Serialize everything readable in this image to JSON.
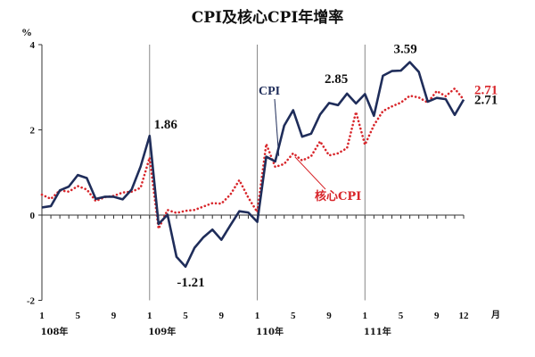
{
  "chart_data": {
    "type": "line",
    "title": "CPI及核心CPI年增率",
    "ylabel": "%",
    "xlabel_right": "月",
    "ylim": [
      -2,
      4
    ],
    "yticks": [
      "-2",
      "0",
      "2",
      "4"
    ],
    "month_ticks": [
      "1",
      "5",
      "9",
      "1",
      "5",
      "9",
      "1",
      "5",
      "9",
      "1",
      "5",
      "9",
      "12"
    ],
    "year_labels": [
      "108年",
      "109年",
      "110年",
      "111年"
    ],
    "x_months": 48,
    "series": [
      {
        "name": "CPI",
        "color": "#1f2d5a",
        "style": "solid",
        "values": [
          0.18,
          0.21,
          0.58,
          0.67,
          0.94,
          0.87,
          0.38,
          0.43,
          0.43,
          0.37,
          0.6,
          1.14,
          1.86,
          -0.21,
          0.01,
          -0.98,
          -1.21,
          -0.77,
          -0.52,
          -0.34,
          -0.58,
          -0.24,
          0.09,
          0.06,
          -0.16,
          1.37,
          1.26,
          2.1,
          2.46,
          1.84,
          1.91,
          2.36,
          2.63,
          2.58,
          2.85,
          2.62,
          2.84,
          2.33,
          3.27,
          3.38,
          3.39,
          3.59,
          3.36,
          2.66,
          2.75,
          2.72,
          2.35,
          2.71
        ]
      },
      {
        "name": "核心CPI",
        "color": "#d8262b",
        "style": "dotted",
        "values": [
          0.48,
          0.38,
          0.58,
          0.55,
          0.68,
          0.6,
          0.33,
          0.42,
          0.45,
          0.53,
          0.55,
          0.64,
          1.35,
          -0.32,
          0.12,
          0.05,
          0.1,
          0.12,
          0.2,
          0.28,
          0.27,
          0.48,
          0.82,
          0.41,
          0.07,
          1.67,
          1.13,
          1.2,
          1.45,
          1.28,
          1.38,
          1.73,
          1.4,
          1.45,
          1.57,
          2.42,
          1.65,
          2.11,
          2.44,
          2.55,
          2.64,
          2.8,
          2.76,
          2.64,
          2.91,
          2.79,
          2.97,
          2.71
        ]
      }
    ],
    "annotations": [
      {
        "text": "1.86",
        "series": "CPI",
        "index": 12
      },
      {
        "text": "-1.21",
        "series": "CPI",
        "index": 16
      },
      {
        "text": "2.85",
        "series": "CPI",
        "index": 34
      },
      {
        "text": "3.59",
        "series": "CPI",
        "index": 41
      },
      {
        "text": "2.71",
        "series": "CPI",
        "index": 47
      },
      {
        "text": "2.71",
        "series": "核心CPI",
        "index": 47
      }
    ]
  }
}
